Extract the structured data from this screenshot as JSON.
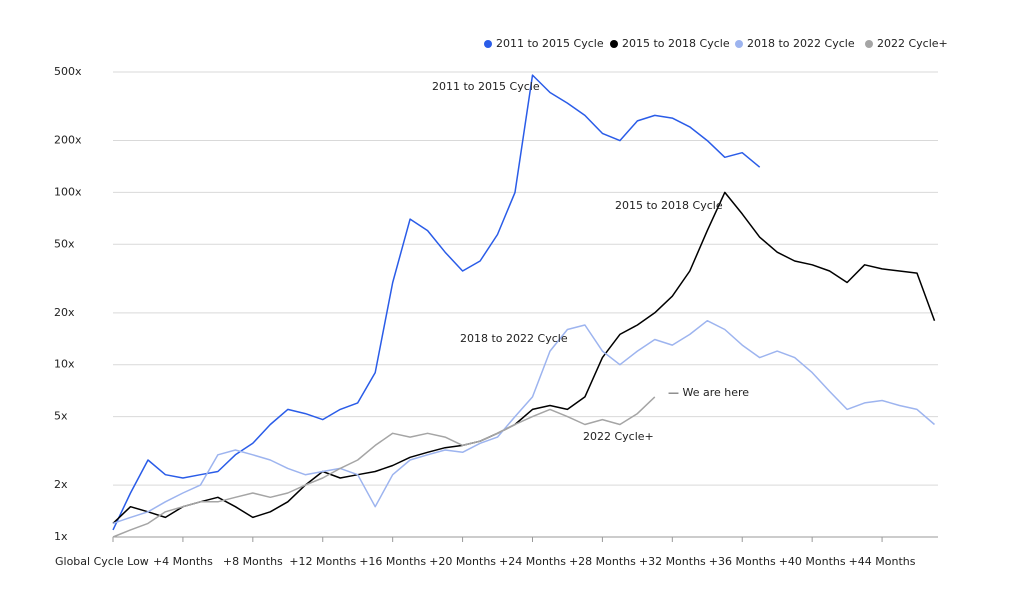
{
  "chart_data": {
    "type": "line",
    "yscale": "log",
    "grid": true,
    "legend": "top-right",
    "x": [
      0,
      1,
      2,
      3,
      4,
      5,
      6,
      7,
      8,
      9,
      10,
      11,
      12,
      13,
      14,
      15,
      16,
      17,
      18,
      19,
      20,
      21,
      22,
      23,
      24,
      25,
      26,
      27,
      28,
      29,
      30,
      31,
      32,
      33,
      34,
      35,
      36,
      37,
      38,
      39,
      40,
      41,
      42,
      43,
      44,
      45,
      46,
      47
    ],
    "xlim": [
      0,
      47.2
    ],
    "xticks": [
      {
        "value": 0,
        "label": "Global Cycle Low"
      },
      {
        "value": 4,
        "label": "+4 Months"
      },
      {
        "value": 8,
        "label": "+8 Months"
      },
      {
        "value": 12,
        "label": "+12 Months"
      },
      {
        "value": 16,
        "label": "+16 Months"
      },
      {
        "value": 20,
        "label": "+20 Months"
      },
      {
        "value": 24,
        "label": "+24 Months"
      },
      {
        "value": 28,
        "label": "+28 Months"
      },
      {
        "value": 32,
        "label": "+32 Months"
      },
      {
        "value": 36,
        "label": "+36 Months"
      },
      {
        "value": 40,
        "label": "+40 Months"
      },
      {
        "value": 44,
        "label": "+44 Months"
      }
    ],
    "ylim": [
      1,
      500
    ],
    "yticks": [
      {
        "value": 1,
        "label": "1x"
      },
      {
        "value": 2,
        "label": "2x"
      },
      {
        "value": 5,
        "label": "5x"
      },
      {
        "value": 10,
        "label": "10x"
      },
      {
        "value": 20,
        "label": "20x"
      },
      {
        "value": 50,
        "label": "50x"
      },
      {
        "value": 100,
        "label": "100x"
      },
      {
        "value": 200,
        "label": "200x"
      },
      {
        "value": 500,
        "label": "500x"
      }
    ],
    "series": [
      {
        "name": "2011 to 2015 Cycle",
        "color": "#2a5ce8",
        "values": [
          1.1,
          1.8,
          2.8,
          2.3,
          2.2,
          2.3,
          2.4,
          3.0,
          3.5,
          4.5,
          5.5,
          5.2,
          4.8,
          5.5,
          6.0,
          9,
          30,
          70,
          60,
          45,
          35,
          40,
          57,
          100,
          480,
          380,
          330,
          280,
          220,
          200,
          260,
          280,
          270,
          240,
          200,
          160,
          170,
          140,
          null,
          null,
          null,
          null,
          null,
          null,
          null,
          null,
          null,
          null
        ]
      },
      {
        "name": "2015 to 2018 Cycle",
        "color": "#000000",
        "values": [
          1.2,
          1.5,
          1.4,
          1.3,
          1.5,
          1.6,
          1.7,
          1.5,
          1.3,
          1.4,
          1.6,
          2.0,
          2.4,
          2.2,
          2.3,
          2.4,
          2.6,
          2.9,
          3.1,
          3.3,
          3.4,
          3.6,
          4.0,
          4.5,
          5.5,
          5.8,
          5.5,
          6.5,
          11,
          15,
          17,
          20,
          25,
          35,
          60,
          100,
          75,
          55,
          45,
          40,
          38,
          35,
          30,
          38,
          36,
          35,
          34,
          18
        ]
      },
      {
        "name": "2018 to 2022 Cycle",
        "color": "#9db4ef",
        "values": [
          1.2,
          1.3,
          1.4,
          1.6,
          1.8,
          2.0,
          3.0,
          3.2,
          3.0,
          2.8,
          2.5,
          2.3,
          2.4,
          2.5,
          2.3,
          1.5,
          2.3,
          2.8,
          3.0,
          3.2,
          3.1,
          3.5,
          3.8,
          5.0,
          6.5,
          12,
          16,
          17,
          12,
          10,
          12,
          14,
          13,
          15,
          18,
          16,
          13,
          11,
          12,
          11,
          9,
          7,
          5.5,
          6,
          6.2,
          5.8,
          5.5,
          4.5
        ]
      },
      {
        "name": "2022 Cycle+",
        "color": "#a5a5a5",
        "values": [
          1.0,
          1.1,
          1.2,
          1.4,
          1.5,
          1.6,
          1.6,
          1.7,
          1.8,
          1.7,
          1.8,
          2.0,
          2.2,
          2.5,
          2.8,
          3.4,
          4.0,
          3.8,
          4.0,
          3.8,
          3.4,
          3.6,
          4.0,
          4.5,
          5.0,
          5.5,
          5.0,
          4.5,
          4.8,
          4.5,
          5.2,
          6.5,
          null,
          null,
          null,
          null,
          null,
          null,
          null,
          null,
          null,
          null,
          null,
          null,
          null,
          null,
          null,
          null
        ]
      }
    ],
    "annotations": [
      "2011 to 2015 Cycle",
      "2015 to 2018 Cycle",
      "2018 to 2022 Cycle",
      "— We are here",
      "2022 Cycle+"
    ]
  }
}
